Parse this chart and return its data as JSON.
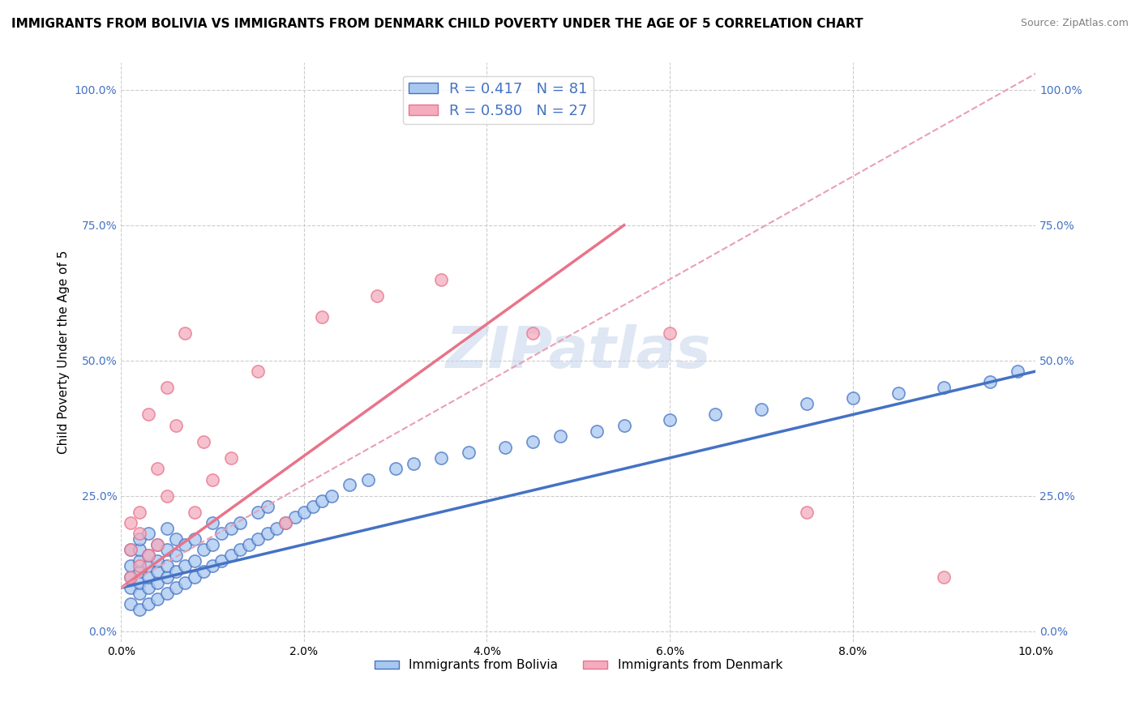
{
  "title": "IMMIGRANTS FROM BOLIVIA VS IMMIGRANTS FROM DENMARK CHILD POVERTY UNDER THE AGE OF 5 CORRELATION CHART",
  "source": "Source: ZipAtlas.com",
  "ylabel": "Child Poverty Under the Age of 5",
  "xlabel": "",
  "xlim": [
    0.0,
    0.1
  ],
  "ylim": [
    -0.02,
    1.05
  ],
  "yticks": [
    0.0,
    0.25,
    0.5,
    0.75,
    1.0
  ],
  "ytick_labels": [
    "0.0%",
    "25.0%",
    "50.0%",
    "75.0%",
    "100.0%"
  ],
  "xticks": [
    0.0,
    0.02,
    0.04,
    0.06,
    0.08,
    0.1
  ],
  "xtick_labels": [
    "0.0%",
    "2.0%",
    "4.0%",
    "6.0%",
    "8.0%",
    "10.0%"
  ],
  "bolivia_color": "#A8C8F0",
  "bolivia_edge_color": "#4472C4",
  "bolivia_label": "Immigrants from Bolivia",
  "bolivia_R": "0.417",
  "bolivia_N": "81",
  "denmark_color": "#F4ACBE",
  "denmark_edge_color": "#E8748A",
  "denmark_label": "Immigrants from Denmark",
  "denmark_R": "0.580",
  "denmark_N": "27",
  "background_color": "#FFFFFF",
  "grid_color": "#CCCCCC",
  "watermark": "ZIPatlas",
  "watermark_color": "#C8D8EC",
  "legend_text_color": "#4472C4",
  "bolivia_scatter_x": [
    0.001,
    0.001,
    0.001,
    0.001,
    0.001,
    0.002,
    0.002,
    0.002,
    0.002,
    0.002,
    0.002,
    0.002,
    0.003,
    0.003,
    0.003,
    0.003,
    0.003,
    0.003,
    0.004,
    0.004,
    0.004,
    0.004,
    0.004,
    0.005,
    0.005,
    0.005,
    0.005,
    0.005,
    0.006,
    0.006,
    0.006,
    0.006,
    0.007,
    0.007,
    0.007,
    0.008,
    0.008,
    0.008,
    0.009,
    0.009,
    0.01,
    0.01,
    0.01,
    0.011,
    0.011,
    0.012,
    0.012,
    0.013,
    0.013,
    0.014,
    0.015,
    0.015,
    0.016,
    0.016,
    0.017,
    0.018,
    0.019,
    0.02,
    0.021,
    0.022,
    0.023,
    0.025,
    0.027,
    0.03,
    0.032,
    0.035,
    0.038,
    0.042,
    0.045,
    0.048,
    0.052,
    0.055,
    0.06,
    0.065,
    0.07,
    0.075,
    0.08,
    0.085,
    0.09,
    0.095,
    0.098
  ],
  "bolivia_scatter_y": [
    0.05,
    0.08,
    0.1,
    0.12,
    0.15,
    0.04,
    0.07,
    0.09,
    0.11,
    0.13,
    0.15,
    0.17,
    0.05,
    0.08,
    0.1,
    0.12,
    0.14,
    0.18,
    0.06,
    0.09,
    0.11,
    0.13,
    0.16,
    0.07,
    0.1,
    0.12,
    0.15,
    0.19,
    0.08,
    0.11,
    0.14,
    0.17,
    0.09,
    0.12,
    0.16,
    0.1,
    0.13,
    0.17,
    0.11,
    0.15,
    0.12,
    0.16,
    0.2,
    0.13,
    0.18,
    0.14,
    0.19,
    0.15,
    0.2,
    0.16,
    0.17,
    0.22,
    0.18,
    0.23,
    0.19,
    0.2,
    0.21,
    0.22,
    0.23,
    0.24,
    0.25,
    0.27,
    0.28,
    0.3,
    0.31,
    0.32,
    0.33,
    0.34,
    0.35,
    0.36,
    0.37,
    0.38,
    0.39,
    0.4,
    0.41,
    0.42,
    0.43,
    0.44,
    0.45,
    0.46,
    0.48
  ],
  "denmark_scatter_x": [
    0.001,
    0.001,
    0.001,
    0.002,
    0.002,
    0.002,
    0.003,
    0.003,
    0.004,
    0.004,
    0.005,
    0.005,
    0.006,
    0.007,
    0.008,
    0.009,
    0.01,
    0.012,
    0.015,
    0.018,
    0.022,
    0.028,
    0.035,
    0.045,
    0.06,
    0.075,
    0.09
  ],
  "denmark_scatter_y": [
    0.1,
    0.15,
    0.2,
    0.12,
    0.18,
    0.22,
    0.14,
    0.4,
    0.16,
    0.3,
    0.45,
    0.25,
    0.38,
    0.55,
    0.22,
    0.35,
    0.28,
    0.32,
    0.48,
    0.2,
    0.58,
    0.62,
    0.65,
    0.55,
    0.55,
    0.22,
    0.1
  ],
  "bolivia_trend_x": [
    0.0,
    0.1
  ],
  "bolivia_trend_y": [
    0.08,
    0.48
  ],
  "denmark_trend_x": [
    0.0,
    0.055
  ],
  "denmark_trend_y": [
    0.08,
    0.75
  ],
  "dashed_line_x": [
    0.0,
    0.1
  ],
  "dashed_line_y": [
    0.08,
    1.03
  ],
  "dashed_color": "#E8A0B4"
}
